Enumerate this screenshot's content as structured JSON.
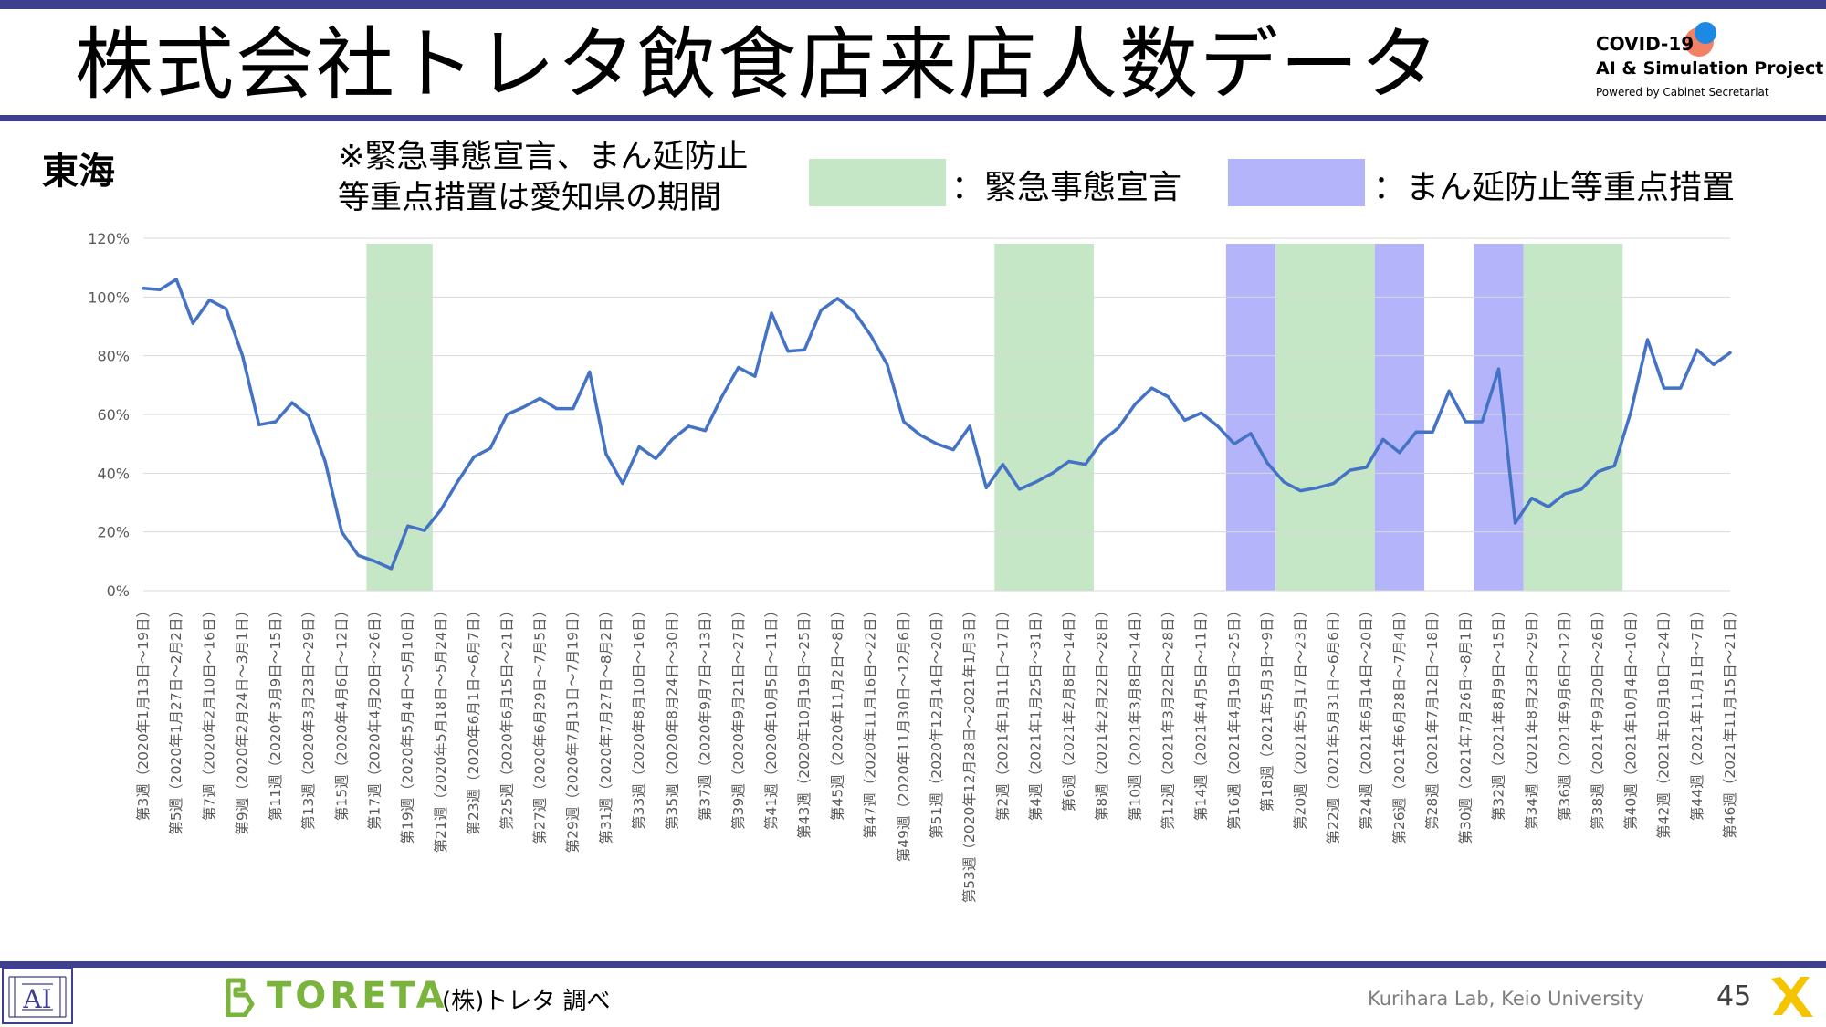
{
  "header": {
    "title": "株式会社トレタ飲食店来店人数データ",
    "logo_line1": "COVID-19",
    "logo_line2": "AI & Simulation Project",
    "logo_line3": "Powered by Cabinet Secretariat"
  },
  "region": "東海",
  "note_line1": "※緊急事態宣言、まん延防止",
  "note_line2": "等重点措置は愛知県の期間",
  "legend": {
    "emergency_label": "：緊急事態宣言",
    "emergency_color": "#c6e7c5",
    "priority_label": "：まん延防止等重点措置",
    "priority_color": "#b4b4fb"
  },
  "footer": {
    "brand": "TORETA",
    "source": "(株)トレタ 調べ",
    "lab": "Kurihara Lab, Keio University",
    "page": "45"
  },
  "chart_data": {
    "type": "line",
    "line_color": "#4472c4",
    "y_ticks": [
      "0%",
      "20%",
      "40%",
      "60%",
      "80%",
      "100%",
      "120%"
    ],
    "ylim": [
      0,
      120
    ],
    "grid": true,
    "x_labels": [
      "第3週（2020年1月13日～19日）",
      "第5週（2020年1月27日～2月2日）",
      "第7週（2020年2月10日～16日）",
      "第9週（2020年2月24日～3月1日）",
      "第11週（2020年3月9日～15日）",
      "第13週（2020年3月23日～29日）",
      "第15週（2020年4月6日～12日）",
      "第17週（2020年4月20日～26日）",
      "第19週（2020年5月4日～5月10日）",
      "第21週（2020年5月18日～5月24日）",
      "第23週（2020年6月1日～6月7日）",
      "第25週（2020年6月15日～21日）",
      "第27週（2020年6月29日～7月5日）",
      "第29週（2020年7月13日～7月19日）",
      "第31週（2020年7月27日～8月2日）",
      "第33週（2020年8月10日～16日）",
      "第35週（2020年8月24日～30日）",
      "第37週（2020年9月7日～13日）",
      "第39週（2020年9月21日～27日）",
      "第41週（2020年10月5日～11日）",
      "第43週（2020年10月19日～25日）",
      "第45週（2020年11月2日～8日）",
      "第47週（2020年11月16日～22日）",
      "第49週（2020年11月30日～12月6日）",
      "第51週（2020年12月14日～20日）",
      "第53週（2020年12月28日～2021年1月3日）",
      "第2週（2021年1月11日～17日）",
      "第4週（2021年1月25日～31日）",
      "第6週（2021年2月8日～14日）",
      "第8週（2021年2月22日～28日）",
      "第10週（2021年3月8日～14日）",
      "第12週（2021年3月22日～28日）",
      "第14週（2021年4月5日～11日）",
      "第16週（2021年4月19日～25日）",
      "第18週（2021年5月3日～9日）",
      "第20週（2021年5月17日～23日）",
      "第22週（2021年5月31日～6月6日）",
      "第24週（2021年6月14日～20日）",
      "第26週（2021年6月28日～7月4日）",
      "第28週（2021年7月12日～18日）",
      "第30週（2021年7月26日～8月1日）",
      "第32週（2021年8月9日～15日）",
      "第34週（2021年8月23日～29日）",
      "第36週（2021年9月6日～12日）",
      "第38週（2021年9月20日～26日）",
      "第40週（2021年10月4日～10日）",
      "第42週（2021年10月18日～24日）",
      "第44週（2021年11月1日～7日）",
      "第46週（2021年11月15日～21日）"
    ],
    "values": [
      103,
      102.5,
      106,
      91,
      99,
      96,
      80,
      56.5,
      57.5,
      64,
      59.5,
      44,
      20,
      12,
      10,
      7.5,
      22,
      20.5,
      27.5,
      37,
      45.5,
      48.5,
      60,
      62.5,
      65.5,
      62,
      62,
      74.5,
      46.5,
      36.5,
      49,
      45,
      51.5,
      56,
      54.5,
      66,
      76,
      73,
      94.5,
      81.5,
      82,
      95.5,
      99.5,
      95,
      87,
      77,
      57.5,
      53,
      50,
      48,
      56,
      35,
      43,
      34.5,
      37,
      40,
      44,
      43,
      51,
      55.5,
      63.5,
      69,
      66,
      58,
      60.5,
      56,
      50,
      53.5,
      43.5,
      37,
      34,
      35,
      36.5,
      41,
      42,
      51.5,
      47,
      54,
      54,
      68,
      57.5,
      57.5,
      75.5,
      23,
      31.5,
      28.5,
      33,
      34.5,
      40.5,
      42.5,
      61,
      85.5,
      69,
      69,
      82,
      77,
      81
    ],
    "shading": [
      {
        "type": "emergency",
        "start": 13,
        "end": 17
      },
      {
        "type": "emergency",
        "start": 51,
        "end": 57
      },
      {
        "type": "priority",
        "start": 65,
        "end": 68
      },
      {
        "type": "emergency",
        "start": 68,
        "end": 74
      },
      {
        "type": "priority",
        "start": 74,
        "end": 77
      },
      {
        "type": "priority",
        "start": 80,
        "end": 83
      },
      {
        "type": "emergency",
        "start": 83,
        "end": 89
      }
    ]
  }
}
